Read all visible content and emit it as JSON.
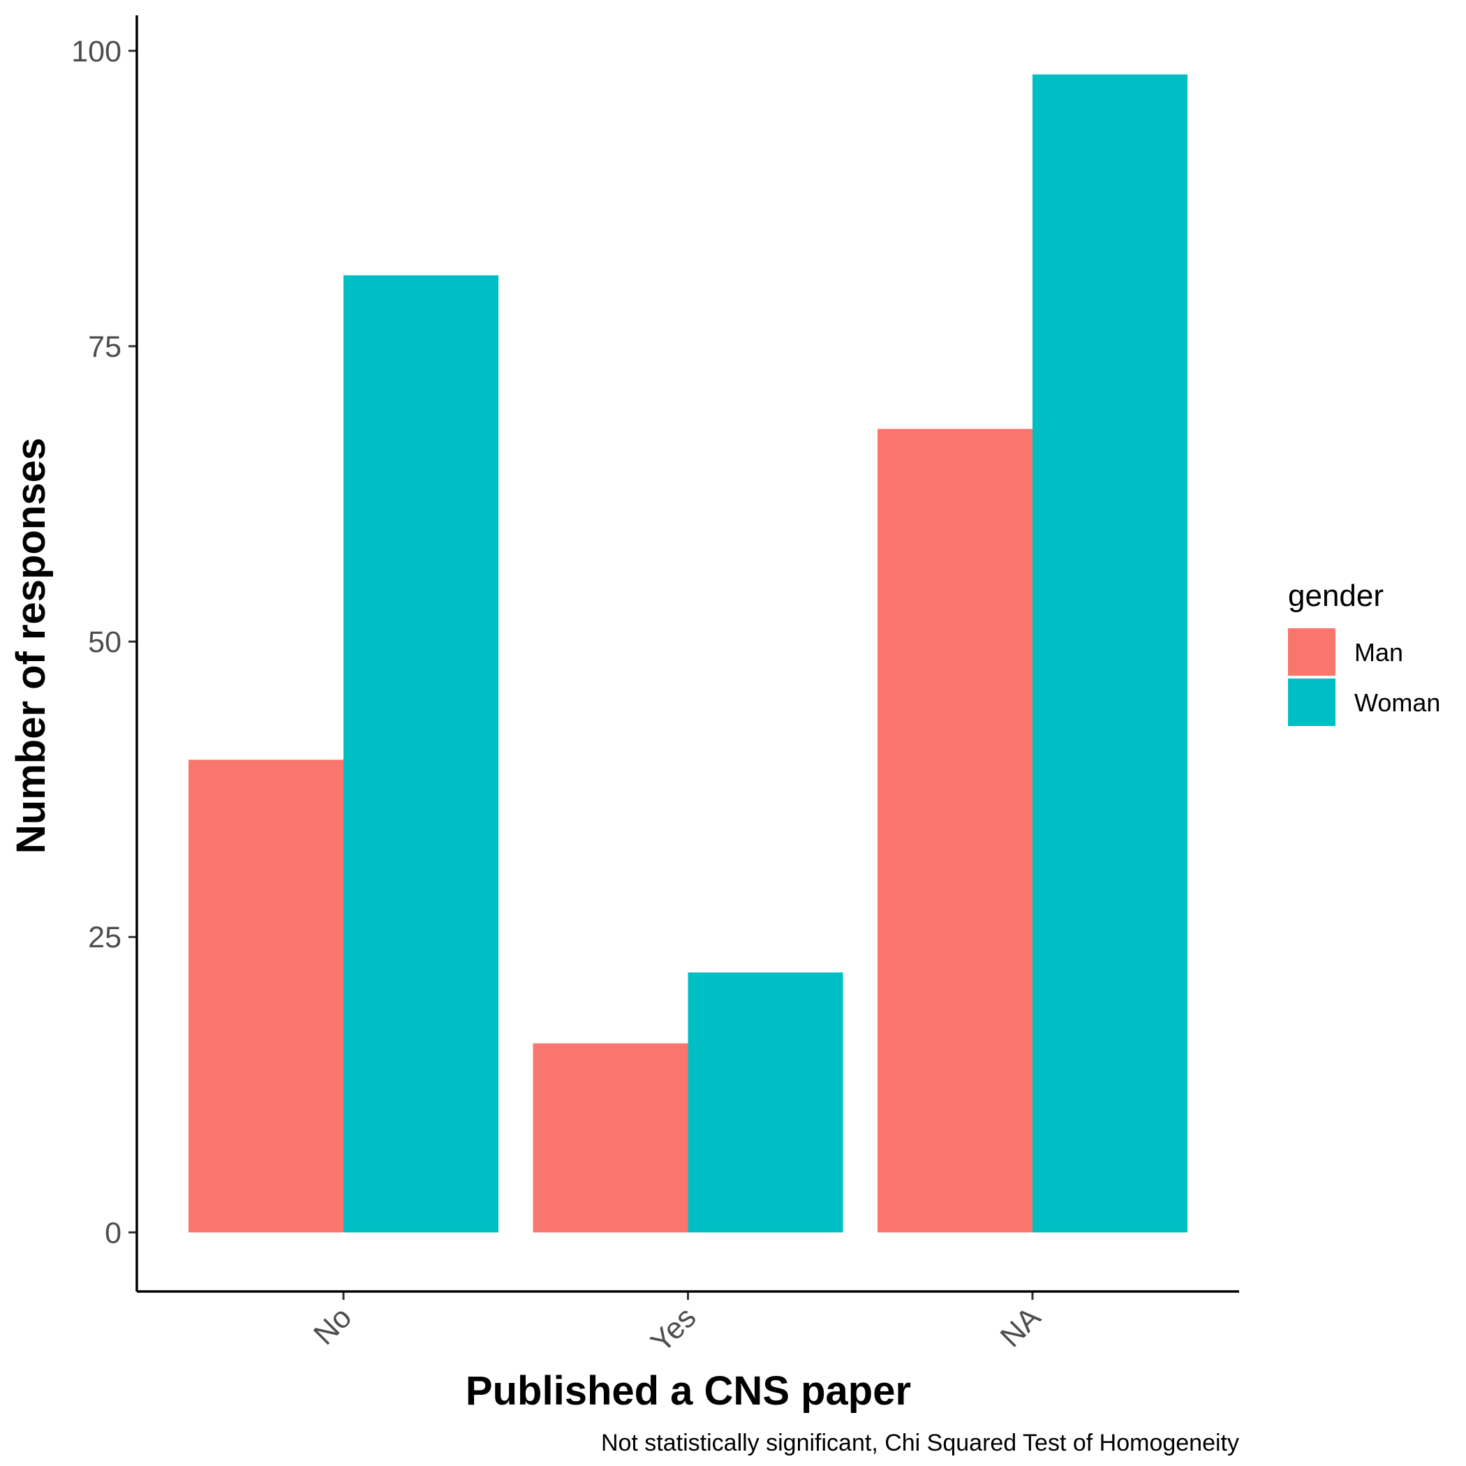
{
  "chart_data": {
    "type": "bar",
    "categories": [
      "No",
      "Yes",
      "NA"
    ],
    "series": [
      {
        "name": "Man",
        "color": "#F8766D",
        "values": [
          40,
          16,
          68
        ]
      },
      {
        "name": "Woman",
        "color": "#00BFC4",
        "values": [
          81,
          22,
          98
        ]
      }
    ],
    "xlabel": "Published a CNS paper",
    "ylabel": "Number of responses",
    "ylim": [
      -5,
      103
    ],
    "yticks": [
      0,
      25,
      50,
      75,
      100
    ],
    "legend": {
      "title": "gender",
      "position": "right"
    },
    "caption": "Not statistically significant, Chi Squared Test of Homogeneity",
    "grid": false
  }
}
